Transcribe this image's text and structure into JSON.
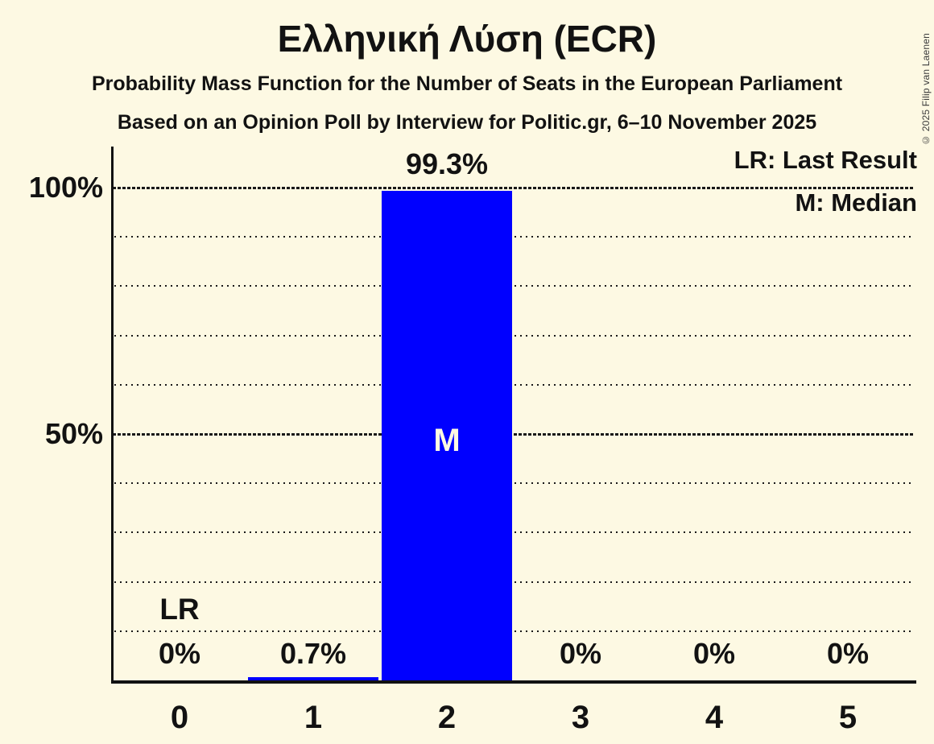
{
  "title": "Ελληνική Λύση (ECR)",
  "subtitle1": "Probability Mass Function for the Number of Seats in the European Parliament",
  "subtitle2": "Based on an Opinion Poll by Interview for Politic.gr, 6–10 November 2025",
  "copyright": "© 2025 Filip van Laenen",
  "legend": {
    "last_result": "LR: Last Result",
    "median": "M: Median"
  },
  "y_axis": {
    "tick_labels": [
      "100%",
      "50%"
    ]
  },
  "chart_data": {
    "type": "bar",
    "categories": [
      "0",
      "1",
      "2",
      "3",
      "4",
      "5"
    ],
    "values": [
      0,
      0.7,
      99.3,
      0,
      0,
      0
    ],
    "value_labels": [
      "0%",
      "0.7%",
      "99.3%",
      "0%",
      "0%",
      "0%"
    ],
    "title": "Ελληνική Λύση (ECR)",
    "xlabel": "",
    "ylabel": "",
    "ylim": [
      0,
      100
    ],
    "grid": "horizontal dotted lines every 10%, dashed lines at 50% and 100%",
    "legend_position": "top-right",
    "bar_color": "#0000ff",
    "background_color": "#fdf9e3",
    "text_color": "#121212",
    "median_bar_index": 2,
    "median_marker": "M",
    "last_result_index": 0,
    "last_result_marker": "LR"
  }
}
